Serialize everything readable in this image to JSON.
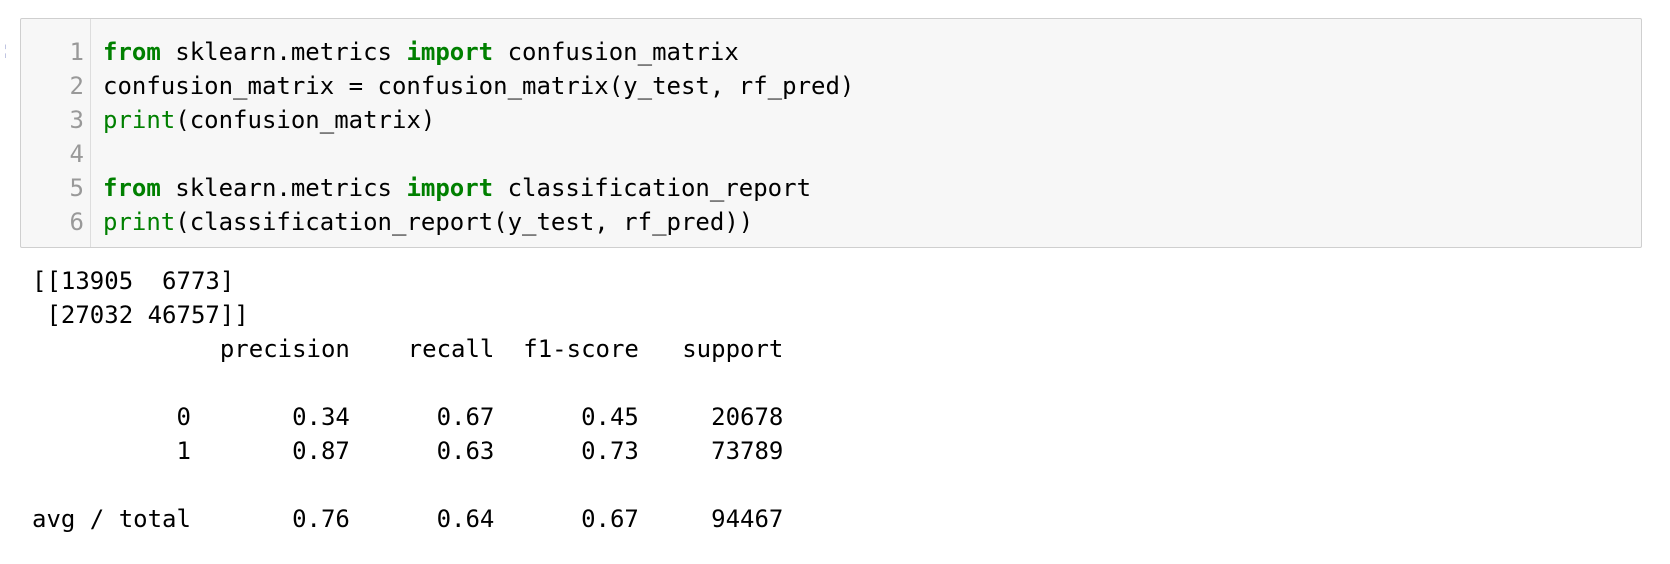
{
  "cell": {
    "line_numbers": [
      "1",
      "2",
      "3",
      "4",
      "5",
      "6"
    ],
    "code": {
      "line1": {
        "kw1": "from",
        "t1": " sklearn.metrics ",
        "kw2": "import",
        "t2": " confusion_matrix"
      },
      "line2": {
        "t1": "confusion_matrix = confusion_matrix(y_test, rf_pred)"
      },
      "line3": {
        "fn": "print",
        "t1": "(confusion_matrix)"
      },
      "line4": {
        "t1": ""
      },
      "line5": {
        "kw1": "from",
        "t1": " sklearn.metrics ",
        "kw2": "import",
        "t2": " classification_report"
      },
      "line6": {
        "fn": "print",
        "t1": "(classification_report(y_test, rf_pred))"
      }
    },
    "output": [
      "[[13905  6773]",
      " [27032 46757]]",
      "             precision    recall  f1-score   support",
      "",
      "          0       0.34      0.67      0.45     20678",
      "          1       0.87      0.63      0.73     73789",
      "",
      "avg / total       0.76      0.64      0.67     94467"
    ]
  }
}
